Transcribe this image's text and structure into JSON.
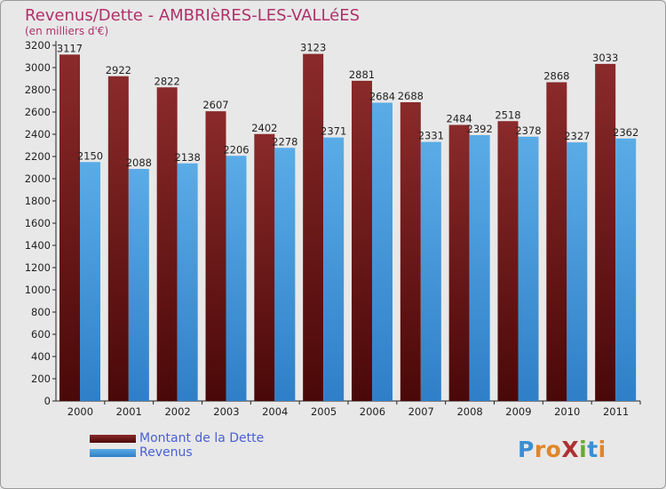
{
  "chart_data": {
    "type": "bar",
    "title": "Revenus/Dette - AMBRIèRES-LES-VALLéES",
    "subtitle": "(en milliers d'€)",
    "categories": [
      "2000",
      "2001",
      "2002",
      "2003",
      "2004",
      "2005",
      "2006",
      "2007",
      "2008",
      "2009",
      "2010",
      "2011"
    ],
    "series": [
      {
        "name": "Montant de la Dette",
        "color": "#8b2a2a",
        "color_dark": "#4a0808",
        "values": [
          3117,
          2922,
          2822,
          2607,
          2402,
          3123,
          2881,
          2688,
          2484,
          2518,
          2868,
          3033
        ]
      },
      {
        "name": "Revenus",
        "color": "#5aace6",
        "color_dark": "#2f7fc8",
        "values": [
          2150,
          2088,
          2138,
          2206,
          2278,
          2371,
          2684,
          2331,
          2392,
          2378,
          2327,
          2362
        ]
      }
    ],
    "ylim": [
      0,
      3200
    ],
    "y_ticks": [
      0,
      200,
      400,
      600,
      800,
      1000,
      1200,
      1400,
      1600,
      1800,
      2000,
      2200,
      2400,
      2600,
      2800,
      3000,
      3200
    ],
    "grid": false,
    "legend": "bottom-left"
  },
  "logo": {
    "text": "ProXiti",
    "letters": [
      {
        "ch": "P",
        "color": "#3a8fd0"
      },
      {
        "ch": "r",
        "color": "#e0852a"
      },
      {
        "ch": "o",
        "color": "#e0852a"
      },
      {
        "ch": "X",
        "color": "#b03030"
      },
      {
        "ch": "i",
        "color": "#6aa832"
      },
      {
        "ch": "t",
        "color": "#3a8fd0"
      },
      {
        "ch": "i",
        "color": "#e0852a"
      }
    ]
  }
}
